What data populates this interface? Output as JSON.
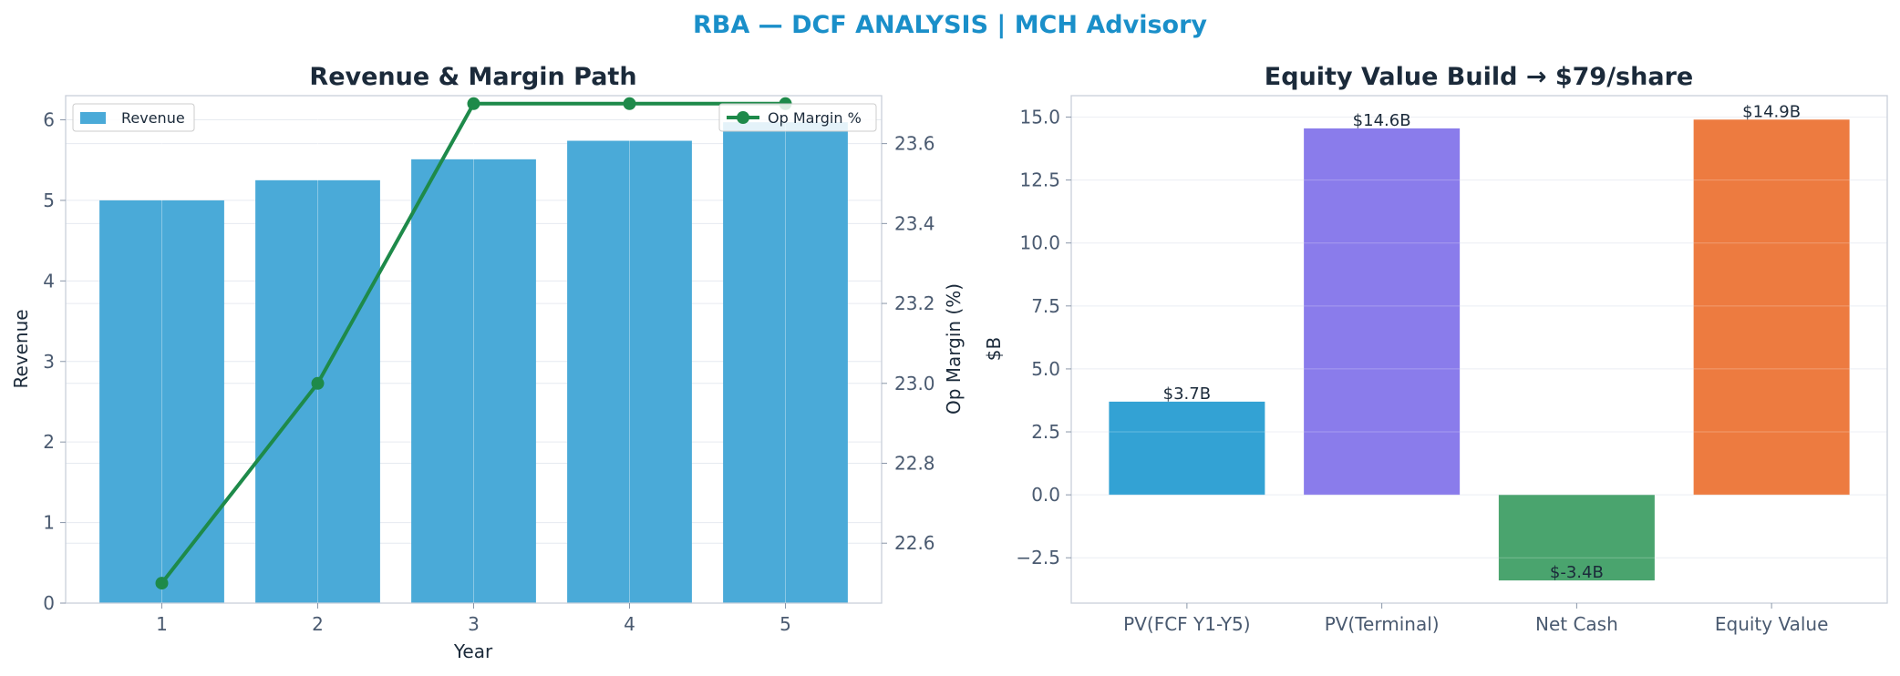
{
  "suptitle": "RBA — DCF ANALYSIS | MCH Advisory",
  "colors": {
    "suptitle": "#1a8fc9",
    "revenue_bar": "#4aaad8",
    "op_margin_line": "#1e8a4a",
    "waterfall": [
      "#33a2d4",
      "#8a7ceb",
      "#4aa46e",
      "#ed7b40"
    ]
  },
  "chart_data": [
    {
      "type": "bar",
      "title": "Revenue & Margin Path",
      "xlabel": "Year",
      "ylabel": "Revenue",
      "y2label": "Op Margin (%)",
      "categories": [
        "1",
        "2",
        "3",
        "4",
        "5"
      ],
      "ylim": [
        0,
        6.3
      ],
      "y2lim": [
        22.45,
        23.72
      ],
      "yticks": [
        0,
        1,
        2,
        3,
        4,
        5,
        6
      ],
      "y2ticks": [
        22.6,
        22.8,
        23.0,
        23.2,
        23.4,
        23.6
      ],
      "grid": true,
      "series": [
        {
          "name": "Revenue",
          "type": "bar",
          "axis": "left",
          "values": [
            5.0,
            5.25,
            5.51,
            5.74,
            5.97
          ]
        },
        {
          "name": "Op Margin %",
          "type": "line",
          "axis": "right",
          "values": [
            22.5,
            23.0,
            23.7,
            23.7,
            23.7
          ]
        }
      ],
      "legend": [
        {
          "label": "Revenue",
          "placement": "top-left"
        },
        {
          "label": "Op Margin %",
          "placement": "top-right"
        }
      ]
    },
    {
      "type": "bar",
      "title": "Equity Value Build → $79/share",
      "xlabel": "",
      "ylabel": "$B",
      "categories": [
        "PV(FCF Y1-Y5)",
        "PV(Terminal)",
        "Net Cash",
        "Equity Value"
      ],
      "values": [
        3.7,
        14.55,
        -3.4,
        14.9
      ],
      "data_labels": [
        "$3.7B",
        "$14.6B",
        "$-3.4B",
        "$14.9B"
      ],
      "ylim": [
        -4.3,
        15.85
      ],
      "yticks": [
        -2.5,
        0.0,
        2.5,
        5.0,
        7.5,
        10.0,
        12.5,
        15.0
      ],
      "ytick_labels": [
        "−2.5",
        "0.0",
        "2.5",
        "5.0",
        "7.5",
        "10.0",
        "12.5",
        "15.0"
      ],
      "grid": true
    }
  ]
}
